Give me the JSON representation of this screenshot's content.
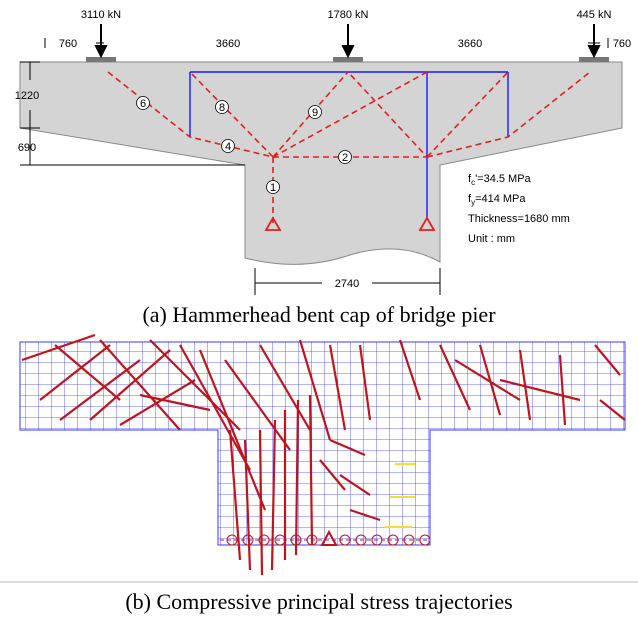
{
  "figure_a": {
    "loads": [
      "3110 kN",
      "1780 kN",
      "445 kN"
    ],
    "dimensions": {
      "top": [
        "760",
        "3660",
        "3660",
        "760"
      ],
      "left": [
        "1220",
        "690"
      ],
      "bottom": "2740"
    },
    "members": [
      "6",
      "8",
      "9",
      "4",
      "2",
      "1"
    ],
    "notes": {
      "fc": {
        "symbol": "f",
        "sub": "c",
        "rest": "'=34.5 MPa"
      },
      "fy": {
        "symbol": "f",
        "sub": "y",
        "rest": "=414 MPa"
      },
      "thickness": "Thickness=1680 mm",
      "unit": "Unit : mm"
    },
    "caption": "(a) Hammerhead bent cap of bridge pier"
  },
  "figure_b": {
    "caption": "(b) Compressive principal stress trajectories"
  }
}
